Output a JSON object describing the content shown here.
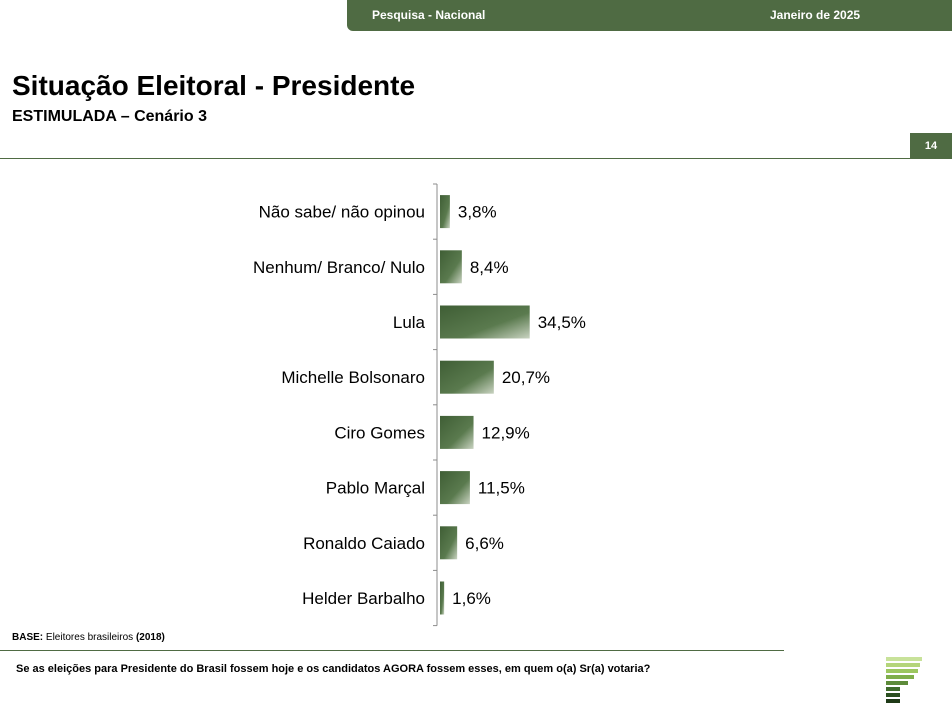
{
  "header": {
    "survey": "Pesquisa - Nacional",
    "date": "Janeiro de 2025"
  },
  "title": "Situação Eleitoral - Presidente",
  "subtitle": "ESTIMULADA – Cenário 3",
  "page_number": "14",
  "footer": {
    "base_label": "BASE:",
    "base_text": "Eleitores brasileiros",
    "base_year": "(2018)",
    "question": "Se as eleições para Presidente do Brasil fossem hoje e os candidatos AGORA fossem esses, em quem o(a) Sr(a) votaria?"
  },
  "colors": {
    "brand": "#4f6b43",
    "bar_dark": "#3f5e35",
    "bar_light": "#c9d3c1"
  },
  "chart_data": {
    "type": "bar",
    "orientation": "horizontal",
    "categories": [
      "Não sabe/ não opinou",
      "Nenhum/ Branco/ Nulo",
      "Lula",
      "Michelle Bolsonaro",
      "Ciro Gomes",
      "Pablo Marçal",
      "Ronaldo Caiado",
      "Helder Barbalho"
    ],
    "values": [
      3.8,
      8.4,
      34.5,
      20.7,
      12.9,
      11.5,
      6.6,
      1.6
    ],
    "labels": [
      "3,8%",
      "8,4%",
      "34,5%",
      "20,7%",
      "12,9%",
      "11,5%",
      "6,6%",
      "1,6%"
    ],
    "unit": "%",
    "grid": false,
    "legend": "none"
  }
}
